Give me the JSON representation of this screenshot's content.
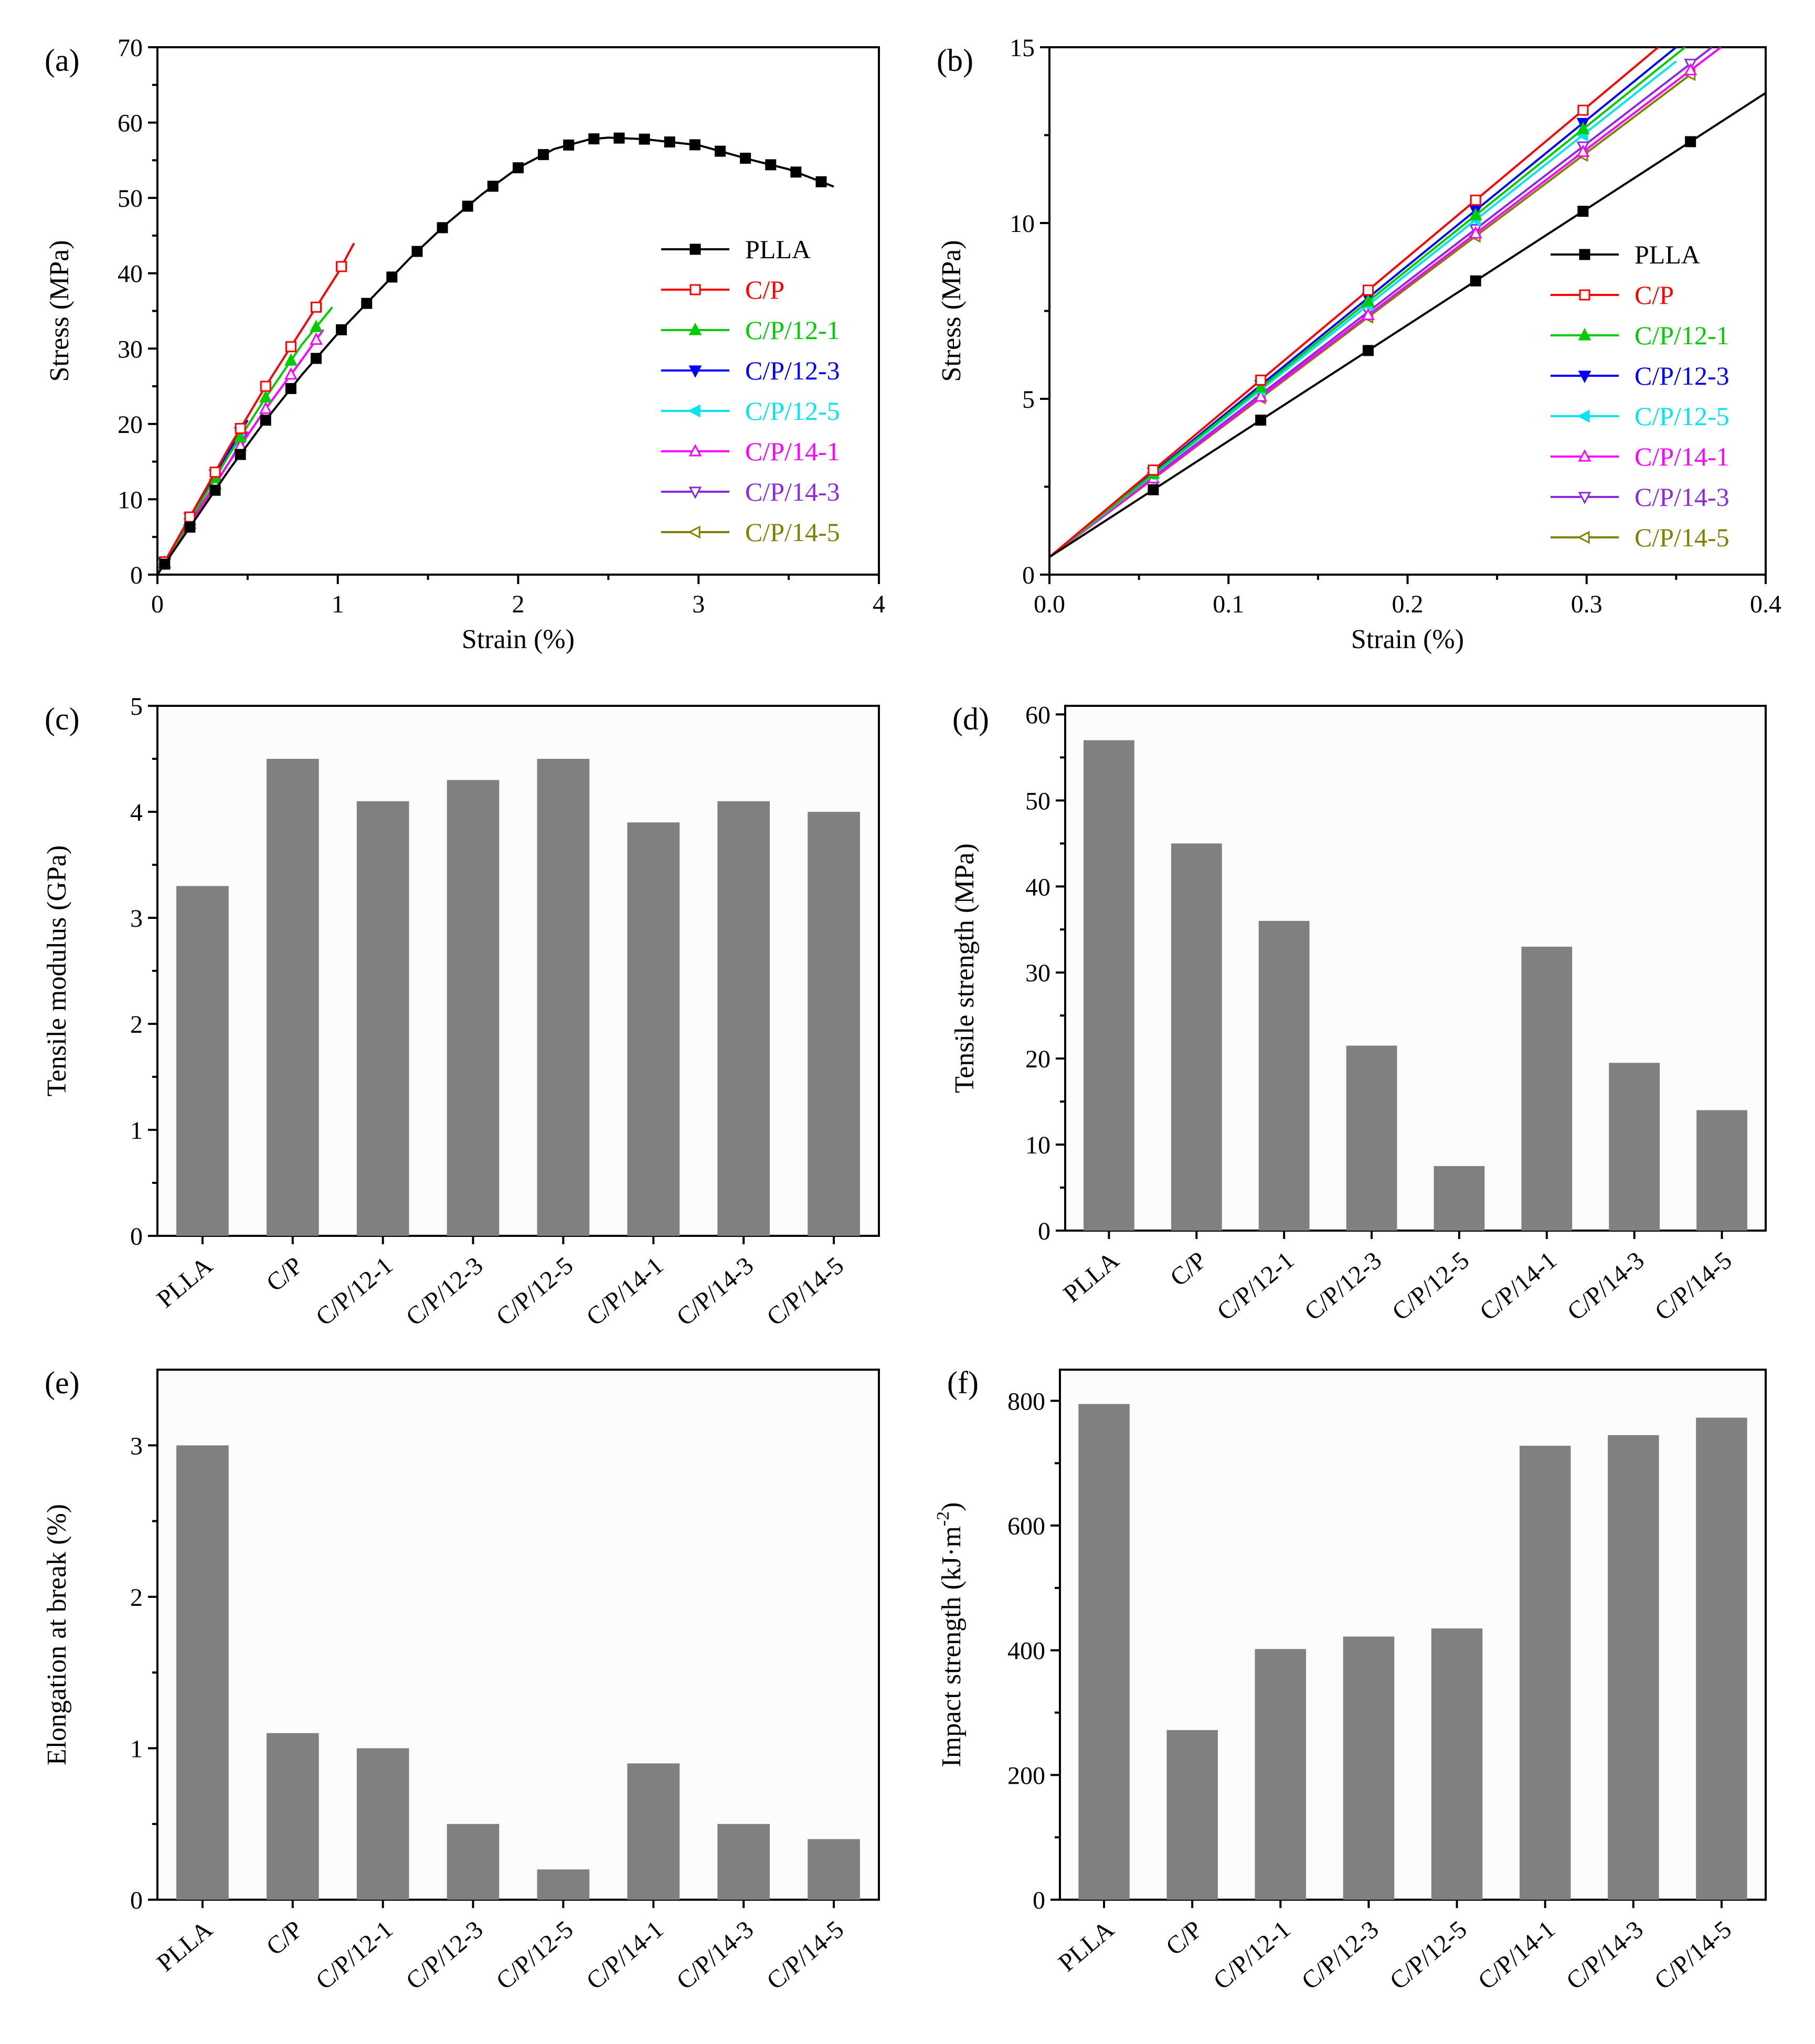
{
  "colors": {
    "PLLA": "#000000",
    "C/P": "#ff0000",
    "C/P/12-1": "#00cc00",
    "C/P/12-3": "#0000ff",
    "C/P/12-5": "#00e5ee",
    "C/P/14-1": "#ff00ff",
    "C/P/14-3": "#8a2be2",
    "C/P/14-5": "#808000",
    "bar": "#808080",
    "plot_bg": "#fcfcfc"
  },
  "chart_data": [
    {
      "id": "a",
      "type": "line",
      "panel_label": "(a)",
      "xlabel": "Strain (%)",
      "ylabel": "Stress (MPa)",
      "xlim": [
        0,
        4
      ],
      "ylim": [
        0,
        70
      ],
      "xticks": [
        "0",
        "1",
        "2",
        "3",
        "4"
      ],
      "yticks": [
        "0",
        "10",
        "20",
        "30",
        "40",
        "50",
        "60",
        "70"
      ],
      "legend_position": "center-right",
      "series": [
        {
          "name": "PLLA",
          "marker": "filled-square",
          "x": [
            0,
            0.2,
            0.4,
            0.6,
            0.8,
            1.0,
            1.2,
            1.4,
            1.6,
            1.8,
            2.0,
            2.2,
            2.4,
            2.5,
            2.7,
            3.0,
            3.3,
            3.5,
            3.75
          ],
          "y": [
            0,
            7,
            14,
            20.5,
            26.5,
            32,
            37,
            42,
            46.5,
            50.5,
            54,
            56.5,
            57.8,
            58,
            57.8,
            57,
            55,
            53.8,
            51.5
          ]
        },
        {
          "name": "C/P",
          "marker": "open-square",
          "x": [
            0,
            0.2,
            0.4,
            0.6,
            0.8,
            1.0,
            1.09
          ],
          "y": [
            0,
            8.5,
            17,
            25,
            32.5,
            40,
            44
          ]
        },
        {
          "name": "C/P/12-1",
          "marker": "filled-triangle-up",
          "x": [
            0,
            0.2,
            0.4,
            0.6,
            0.8,
            0.97
          ],
          "y": [
            0,
            8,
            16,
            23.5,
            30.5,
            35.5
          ]
        },
        {
          "name": "C/P/12-3",
          "marker": "filled-triangle-down",
          "x": [
            0,
            0.1,
            0.2,
            0.3,
            0.4,
            0.5
          ],
          "y": [
            0,
            4.2,
            8.4,
            12.5,
            16.5,
            20.5
          ]
        },
        {
          "name": "C/P/12-5",
          "marker": "filled-triangle-left",
          "x": [
            0,
            0.1,
            0.18
          ],
          "y": [
            0,
            4,
            7.5
          ]
        },
        {
          "name": "C/P/14-1",
          "marker": "open-triangle-up",
          "x": [
            0,
            0.2,
            0.4,
            0.6,
            0.8,
            0.92
          ],
          "y": [
            0,
            7.5,
            15,
            22,
            28.5,
            32.5
          ]
        },
        {
          "name": "C/P/14-3",
          "marker": "open-triangle-down",
          "x": [
            0,
            0.1,
            0.2,
            0.3,
            0.4,
            0.5
          ],
          "y": [
            0,
            3.8,
            7.6,
            11.3,
            15,
            19
          ]
        },
        {
          "name": "C/P/14-5",
          "marker": "open-triangle-left",
          "x": [
            0,
            0.1,
            0.2,
            0.3,
            0.36
          ],
          "y": [
            0,
            3.7,
            7.3,
            11,
            13.5
          ]
        }
      ]
    },
    {
      "id": "b",
      "type": "line",
      "panel_label": "(b)",
      "xlabel": "Strain (%)",
      "ylabel": "Stress (MPa)",
      "xlim": [
        0,
        0.4
      ],
      "ylim": [
        0,
        15
      ],
      "xticks": [
        "0.0",
        "0.1",
        "0.2",
        "0.3",
        "0.4"
      ],
      "yticks": [
        "0",
        "5",
        "10",
        "15"
      ],
      "legend_position": "center-right",
      "series": [
        {
          "name": "PLLA",
          "marker": "filled-square",
          "x": [
            0,
            0.4
          ],
          "y": [
            0.5,
            13.7
          ]
        },
        {
          "name": "C/P",
          "marker": "open-square",
          "x": [
            0,
            0.34
          ],
          "y": [
            0.5,
            15
          ]
        },
        {
          "name": "C/P/12-1",
          "marker": "filled-triangle-up",
          "x": [
            0,
            0.355
          ],
          "y": [
            0.5,
            15
          ]
        },
        {
          "name": "C/P/12-3",
          "marker": "filled-triangle-down",
          "x": [
            0,
            0.35
          ],
          "y": [
            0.5,
            15
          ]
        },
        {
          "name": "C/P/12-5",
          "marker": "filled-triangle-left",
          "x": [
            0,
            0.35
          ],
          "y": [
            0.5,
            14.6
          ]
        },
        {
          "name": "C/P/14-1",
          "marker": "open-triangle-up",
          "x": [
            0,
            0.375
          ],
          "y": [
            0.5,
            15
          ]
        },
        {
          "name": "C/P/14-3",
          "marker": "open-triangle-down",
          "x": [
            0,
            0.37
          ],
          "y": [
            0.5,
            15
          ]
        },
        {
          "name": "C/P/14-5",
          "marker": "open-triangle-left",
          "x": [
            0,
            0.36
          ],
          "y": [
            0.5,
            14.3
          ]
        }
      ]
    },
    {
      "id": "c",
      "type": "bar",
      "panel_label": "(c)",
      "xlabel": "",
      "ylabel": "Tensile modulus (GPa)",
      "categories": [
        "PLLA",
        "C/P",
        "C/P/12-1",
        "C/P/12-3",
        "C/P/12-5",
        "C/P/14-1",
        "C/P/14-3",
        "C/P/14-5"
      ],
      "values": [
        3.3,
        4.5,
        4.1,
        4.3,
        4.5,
        3.9,
        4.1,
        4.0
      ],
      "ylim": [
        0,
        5
      ],
      "yticks": [
        "0",
        "1",
        "2",
        "3",
        "4",
        "5"
      ]
    },
    {
      "id": "d",
      "type": "bar",
      "panel_label": "(d)",
      "xlabel": "",
      "ylabel": "Tensile strength (MPa)",
      "categories": [
        "PLLA",
        "C/P",
        "C/P/12-1",
        "C/P/12-3",
        "C/P/12-5",
        "C/P/14-1",
        "C/P/14-3",
        "C/P/14-5"
      ],
      "values": [
        57,
        45,
        36,
        21.5,
        7.5,
        33,
        19.5,
        14
      ],
      "ylim": [
        0,
        61
      ],
      "yticks": [
        "0",
        "10",
        "20",
        "30",
        "40",
        "50",
        "60"
      ]
    },
    {
      "id": "e",
      "type": "bar",
      "panel_label": "(e)",
      "xlabel": "",
      "ylabel": "Elongation at break (%)",
      "categories": [
        "PLLA",
        "C/P",
        "C/P/12-1",
        "C/P/12-3",
        "C/P/12-5",
        "C/P/14-1",
        "C/P/14-3",
        "C/P/14-5"
      ],
      "values": [
        3.0,
        1.1,
        1.0,
        0.5,
        0.2,
        0.9,
        0.5,
        0.4
      ],
      "ylim": [
        0,
        3.5
      ],
      "yticks": [
        "0",
        "1",
        "2",
        "3"
      ]
    },
    {
      "id": "f",
      "type": "bar",
      "panel_label": "(f)",
      "xlabel": "",
      "ylabel": "Impact strength (kJ·m",
      "ylabel_superscript": "-2",
      "ylabel_suffix": ")",
      "categories": [
        "PLLA",
        "C/P",
        "C/P/12-1",
        "C/P/12-3",
        "C/P/12-5",
        "C/P/14-1",
        "C/P/14-3",
        "C/P/14-5"
      ],
      "values": [
        795,
        272,
        402,
        422,
        435,
        728,
        745,
        773
      ],
      "ylim": [
        0,
        850
      ],
      "yticks": [
        "0",
        "200",
        "400",
        "600",
        "800"
      ]
    }
  ]
}
